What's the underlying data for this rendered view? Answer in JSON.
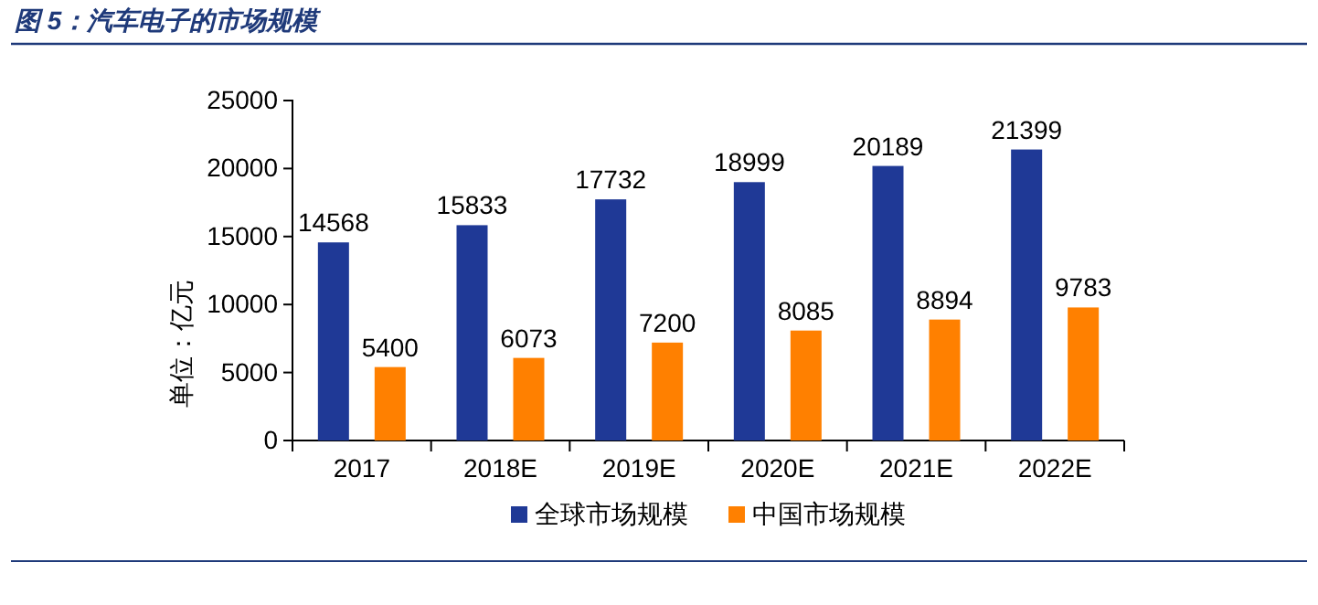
{
  "chart_data": {
    "type": "bar",
    "title": "图 5：汽车电子的市场规模",
    "ylabel": "单位：亿元",
    "categories": [
      "2017",
      "2018E",
      "2019E",
      "2020E",
      "2021E",
      "2022E"
    ],
    "series": [
      {
        "name": "全球市场规模",
        "color": "#1f3996",
        "values": [
          14568,
          15833,
          17732,
          18999,
          20189,
          21399
        ]
      },
      {
        "name": "中国市场规模",
        "color": "#ff8000",
        "values": [
          5400,
          6073,
          7200,
          8085,
          8894,
          9783
        ]
      }
    ],
    "ylim": [
      0,
      25000
    ],
    "yticks": [
      0,
      5000,
      10000,
      15000,
      20000,
      25000
    ],
    "grid": false,
    "legend": "bottom",
    "data_labels": true
  }
}
